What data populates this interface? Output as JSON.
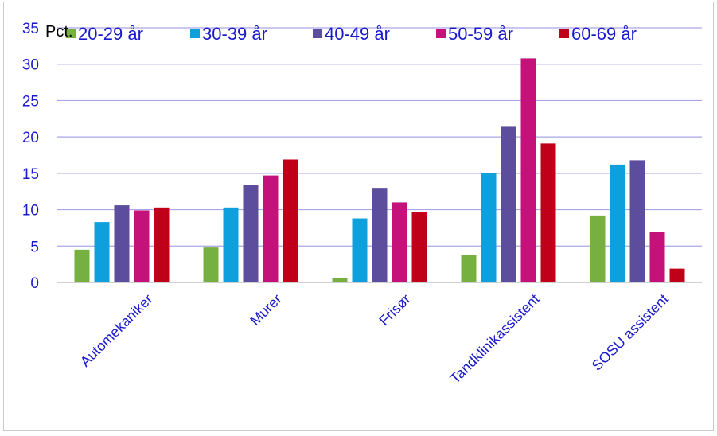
{
  "chart_data": {
    "type": "bar",
    "ylabel": "Pct.",
    "ylim": [
      0,
      35
    ],
    "yticks": [
      0,
      5,
      10,
      15,
      20,
      25,
      30,
      35
    ],
    "grid": true,
    "legend_position": "top",
    "categories": [
      "Automekaniker",
      "Murer",
      "Frisør",
      "Tandklinikassistent",
      "SOSU assistent"
    ],
    "series": [
      {
        "name": "20-29 år",
        "color": "#76b041",
        "values": [
          4.5,
          4.8,
          0.6,
          3.8,
          9.2
        ]
      },
      {
        "name": "30-39 år",
        "color": "#0ea0dc",
        "values": [
          8.3,
          10.3,
          8.8,
          15.0,
          16.2
        ]
      },
      {
        "name": "40-49 år",
        "color": "#5c4e9c",
        "values": [
          10.6,
          13.4,
          13.0,
          21.5,
          16.8
        ]
      },
      {
        "name": "50-59 år",
        "color": "#c4127a",
        "values": [
          9.9,
          14.7,
          11.0,
          30.8,
          6.9
        ]
      },
      {
        "name": "60-69 år",
        "color": "#c00018",
        "values": [
          10.3,
          16.9,
          9.7,
          19.1,
          1.9
        ]
      }
    ]
  },
  "colors": {
    "text": "#1a1acd",
    "grid": "#aaa6e6",
    "axis": "#b5b5b5",
    "ylabel_text": "#000000"
  }
}
